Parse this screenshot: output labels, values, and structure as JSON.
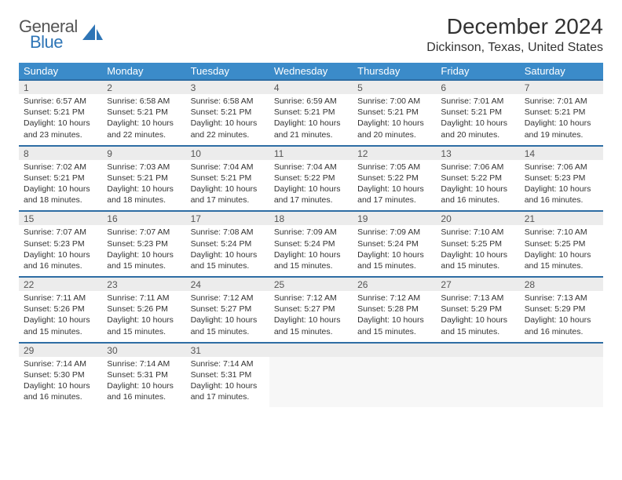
{
  "brand": {
    "line1": "General",
    "line2": "Blue",
    "line1_color": "#555555",
    "line2_color": "#2e75b6",
    "icon_color": "#2e75b6"
  },
  "title": "December 2024",
  "location": "Dickinson, Texas, United States",
  "header_bg": "#3b8bc9",
  "header_fg": "#ffffff",
  "dayhead_bg": "#ececec",
  "dayhead_border": "#2e6da4",
  "text_color": "#333333",
  "weekdays": [
    "Sunday",
    "Monday",
    "Tuesday",
    "Wednesday",
    "Thursday",
    "Friday",
    "Saturday"
  ],
  "days": [
    {
      "n": 1,
      "sunrise": "6:57 AM",
      "sunset": "5:21 PM",
      "dl": "10 hours and 23 minutes."
    },
    {
      "n": 2,
      "sunrise": "6:58 AM",
      "sunset": "5:21 PM",
      "dl": "10 hours and 22 minutes."
    },
    {
      "n": 3,
      "sunrise": "6:58 AM",
      "sunset": "5:21 PM",
      "dl": "10 hours and 22 minutes."
    },
    {
      "n": 4,
      "sunrise": "6:59 AM",
      "sunset": "5:21 PM",
      "dl": "10 hours and 21 minutes."
    },
    {
      "n": 5,
      "sunrise": "7:00 AM",
      "sunset": "5:21 PM",
      "dl": "10 hours and 20 minutes."
    },
    {
      "n": 6,
      "sunrise": "7:01 AM",
      "sunset": "5:21 PM",
      "dl": "10 hours and 20 minutes."
    },
    {
      "n": 7,
      "sunrise": "7:01 AM",
      "sunset": "5:21 PM",
      "dl": "10 hours and 19 minutes."
    },
    {
      "n": 8,
      "sunrise": "7:02 AM",
      "sunset": "5:21 PM",
      "dl": "10 hours and 18 minutes."
    },
    {
      "n": 9,
      "sunrise": "7:03 AM",
      "sunset": "5:21 PM",
      "dl": "10 hours and 18 minutes."
    },
    {
      "n": 10,
      "sunrise": "7:04 AM",
      "sunset": "5:21 PM",
      "dl": "10 hours and 17 minutes."
    },
    {
      "n": 11,
      "sunrise": "7:04 AM",
      "sunset": "5:22 PM",
      "dl": "10 hours and 17 minutes."
    },
    {
      "n": 12,
      "sunrise": "7:05 AM",
      "sunset": "5:22 PM",
      "dl": "10 hours and 17 minutes."
    },
    {
      "n": 13,
      "sunrise": "7:06 AM",
      "sunset": "5:22 PM",
      "dl": "10 hours and 16 minutes."
    },
    {
      "n": 14,
      "sunrise": "7:06 AM",
      "sunset": "5:23 PM",
      "dl": "10 hours and 16 minutes."
    },
    {
      "n": 15,
      "sunrise": "7:07 AM",
      "sunset": "5:23 PM",
      "dl": "10 hours and 16 minutes."
    },
    {
      "n": 16,
      "sunrise": "7:07 AM",
      "sunset": "5:23 PM",
      "dl": "10 hours and 15 minutes."
    },
    {
      "n": 17,
      "sunrise": "7:08 AM",
      "sunset": "5:24 PM",
      "dl": "10 hours and 15 minutes."
    },
    {
      "n": 18,
      "sunrise": "7:09 AM",
      "sunset": "5:24 PM",
      "dl": "10 hours and 15 minutes."
    },
    {
      "n": 19,
      "sunrise": "7:09 AM",
      "sunset": "5:24 PM",
      "dl": "10 hours and 15 minutes."
    },
    {
      "n": 20,
      "sunrise": "7:10 AM",
      "sunset": "5:25 PM",
      "dl": "10 hours and 15 minutes."
    },
    {
      "n": 21,
      "sunrise": "7:10 AM",
      "sunset": "5:25 PM",
      "dl": "10 hours and 15 minutes."
    },
    {
      "n": 22,
      "sunrise": "7:11 AM",
      "sunset": "5:26 PM",
      "dl": "10 hours and 15 minutes."
    },
    {
      "n": 23,
      "sunrise": "7:11 AM",
      "sunset": "5:26 PM",
      "dl": "10 hours and 15 minutes."
    },
    {
      "n": 24,
      "sunrise": "7:12 AM",
      "sunset": "5:27 PM",
      "dl": "10 hours and 15 minutes."
    },
    {
      "n": 25,
      "sunrise": "7:12 AM",
      "sunset": "5:27 PM",
      "dl": "10 hours and 15 minutes."
    },
    {
      "n": 26,
      "sunrise": "7:12 AM",
      "sunset": "5:28 PM",
      "dl": "10 hours and 15 minutes."
    },
    {
      "n": 27,
      "sunrise": "7:13 AM",
      "sunset": "5:29 PM",
      "dl": "10 hours and 15 minutes."
    },
    {
      "n": 28,
      "sunrise": "7:13 AM",
      "sunset": "5:29 PM",
      "dl": "10 hours and 16 minutes."
    },
    {
      "n": 29,
      "sunrise": "7:14 AM",
      "sunset": "5:30 PM",
      "dl": "10 hours and 16 minutes."
    },
    {
      "n": 30,
      "sunrise": "7:14 AM",
      "sunset": "5:31 PM",
      "dl": "10 hours and 16 minutes."
    },
    {
      "n": 31,
      "sunrise": "7:14 AM",
      "sunset": "5:31 PM",
      "dl": "10 hours and 17 minutes."
    }
  ],
  "labels": {
    "sunrise": "Sunrise:",
    "sunset": "Sunset:",
    "daylight": "Daylight:"
  }
}
